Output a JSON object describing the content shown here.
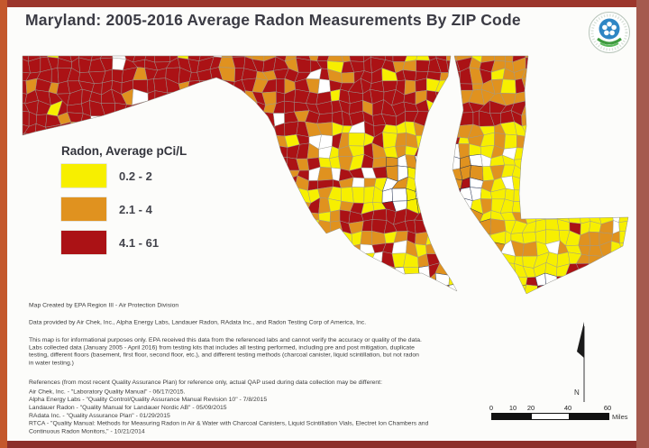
{
  "title": "Maryland: 2005-2016 Average Radon Measurements By ZIP Code",
  "logo": {
    "name": "EPA logo"
  },
  "map": {
    "region_name": "Maryland"
  },
  "legend": {
    "title": "Radon, Average pCi/L",
    "classes": [
      {
        "label": "0.2 - 2",
        "color": "#f7ef00"
      },
      {
        "label": "2.1 - 4",
        "color": "#e0921f"
      },
      {
        "label": "4.1 - 61",
        "color": "#ab1215"
      }
    ]
  },
  "notes": {
    "created_by": "Map Created by EPA Region III - Air Protection Division",
    "data_providers": "Data provided by Air Chek, Inc., Alpha Energy Labs, Landauer Radon, RAdata Inc., and Radon Testing Corp of America, Inc.",
    "disclaimer": "This map is for informational purposes only. EPA received this data from the referenced labs and cannot verify the accuracy or quality of the data. Labs collected data (January 2005 - April 2016) from testing kits that includes all testing performed, including pre and post mitigation, duplicate testing, different floors (basement, first floor, second floor, etc.), and different testing methods (charcoal canister, liquid scintillation, but not radon in water testing.)"
  },
  "references": {
    "intro": "References (from most recent Quality Assurance Plan) for reference only, actual QAP used during data collection may be different:",
    "items": [
      "Air Chek, Inc. - \"Laboratory Quality Manual\" - 06/17/2015.",
      "Alpha Energy Labs - \"Quality Control/Quality Assurance Manual Revision 10\" - 7/8/2015",
      "Landauer Radon - \"Quality Manual for Landauer Nordic AB\" - 05/09/2015",
      "RAdata Inc. - \"Quality Assurance Plan\" - 01/29/2015",
      "RTCA - \"Quality Manual: Methods for Measuring Radon in Air & Water with Charcoal Canisters, Liquid Scintillation Vials, Electret Ion Chambers and Continuous Radon Monitors,\" - 10/21/2014"
    ]
  },
  "scale_bar": {
    "ticks": [
      "0",
      "10",
      "20",
      "40",
      "60"
    ],
    "unit": "Miles"
  },
  "north_arrow": {
    "label": "N"
  },
  "colors": {
    "cell_stroke": "#9a9a93",
    "water_cell_stroke": "#1f2d4d",
    "frame": "#a55a4e"
  }
}
